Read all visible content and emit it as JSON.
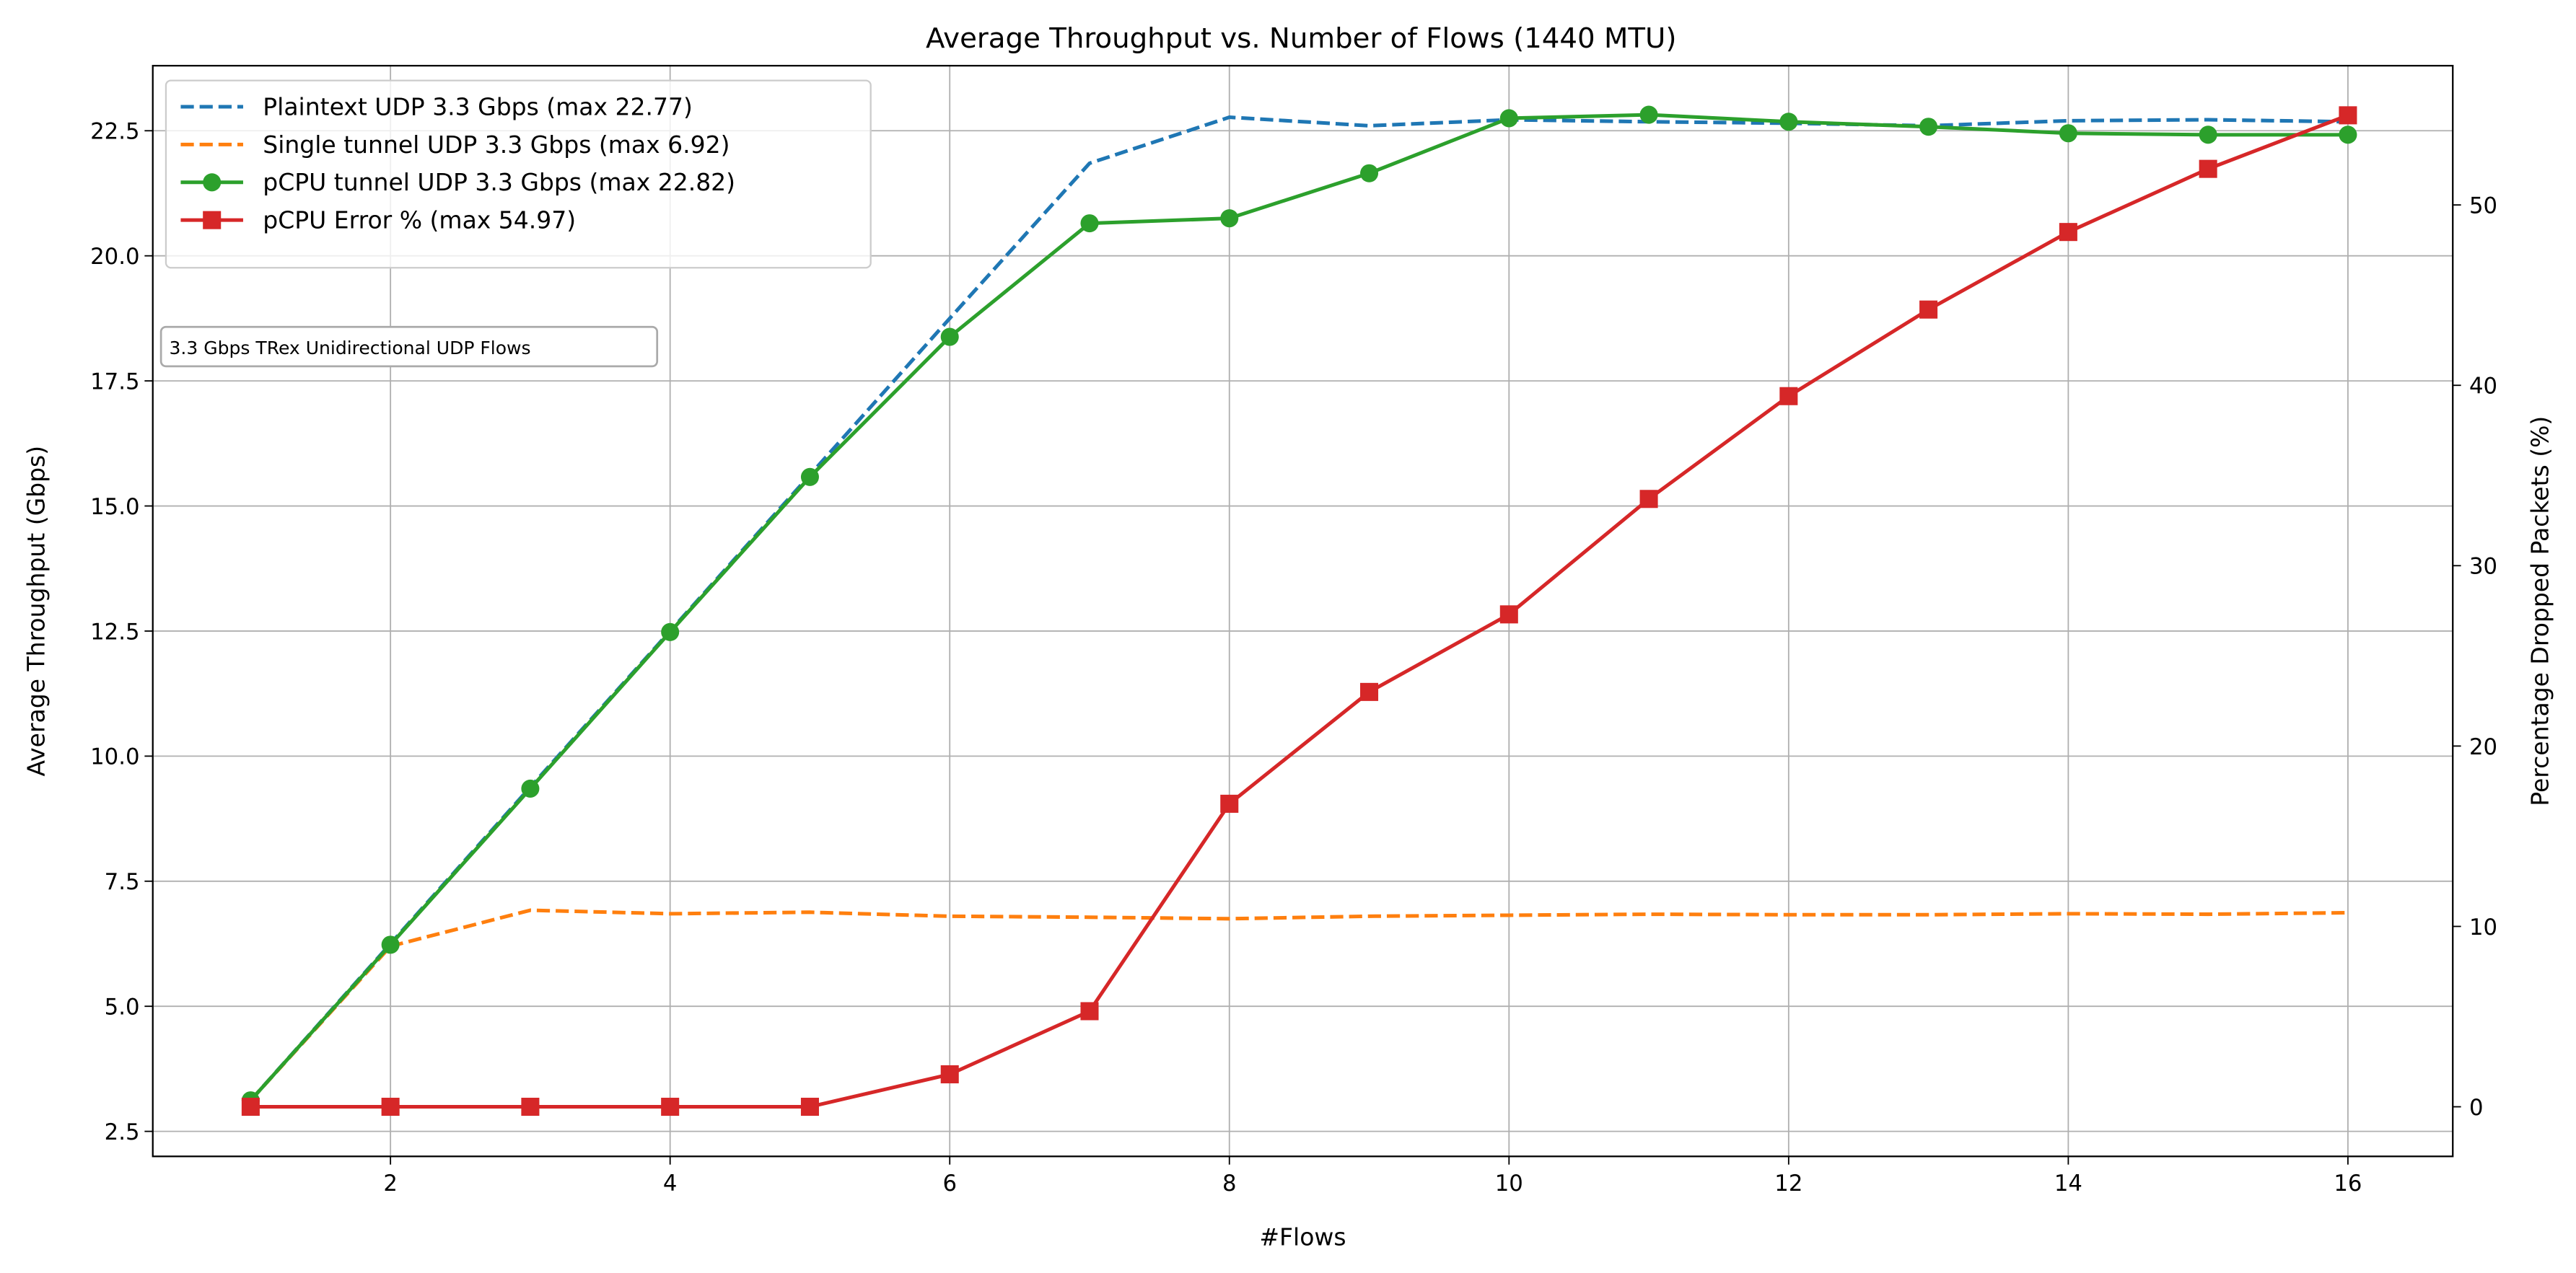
{
  "chart_data": {
    "type": "line",
    "title": "Average Throughput vs. Number of Flows (1440 MTU)",
    "xlabel": "#Flows",
    "ylabel": "Average Throughput (Gbps)",
    "ylabel_right": "Percentage Dropped Packets (%)",
    "x": [
      1,
      2,
      3,
      4,
      5,
      6,
      7,
      8,
      9,
      10,
      11,
      12,
      13,
      14,
      15,
      16
    ],
    "xticks": [
      2,
      4,
      6,
      8,
      10,
      12,
      14,
      16
    ],
    "xlim": [
      0.3,
      16.75
    ],
    "yticks": [
      2.5,
      5.0,
      7.5,
      10.0,
      12.5,
      15.0,
      17.5,
      20.0,
      22.5
    ],
    "ylim": [
      2.0,
      23.8
    ],
    "yticks_right": [
      0,
      10,
      20,
      30,
      40,
      50
    ],
    "ylim_right": [
      -2.75,
      57.72
    ],
    "grid": true,
    "legend_position": "upper left",
    "series": [
      {
        "name": "Plaintext UDP 3.3 Gbps (max 22.77)",
        "axis": "left",
        "color": "#1f77b4",
        "linestyle": "dashed",
        "marker": "none",
        "values": [
          3.12,
          6.25,
          9.38,
          12.5,
          15.62,
          18.75,
          21.85,
          22.77,
          22.6,
          22.72,
          22.68,
          22.65,
          22.6,
          22.7,
          22.72,
          22.68
        ]
      },
      {
        "name": "Single tunnel UDP 3.3 Gbps (max 6.92)",
        "axis": "left",
        "color": "#ff7f0e",
        "linestyle": "dashed",
        "marker": "none",
        "values": [
          3.12,
          6.2,
          6.92,
          6.85,
          6.88,
          6.8,
          6.78,
          6.75,
          6.8,
          6.82,
          6.84,
          6.83,
          6.83,
          6.85,
          6.84,
          6.87
        ]
      },
      {
        "name": "pCPU tunnel UDP 3.3 Gbps (max 22.82)",
        "axis": "left",
        "color": "#2ca02c",
        "linestyle": "solid",
        "marker": "circle",
        "values": [
          3.12,
          6.23,
          9.35,
          12.48,
          15.58,
          18.38,
          20.65,
          20.75,
          21.65,
          22.75,
          22.82,
          22.68,
          22.58,
          22.45,
          22.42,
          22.42
        ]
      },
      {
        "name": "pCPU Error % (max 54.97)",
        "axis": "right",
        "color": "#d62728",
        "linestyle": "solid",
        "marker": "square",
        "values": [
          0.0,
          0.0,
          0.0,
          0.0,
          0.0,
          1.8,
          5.3,
          16.8,
          23.0,
          27.3,
          33.7,
          39.4,
          44.2,
          48.5,
          52.0,
          54.97
        ]
      }
    ],
    "annotations": [
      {
        "text": "3.3 Gbps TRex Unidirectional UDP Flows",
        "boxed": true
      }
    ]
  }
}
